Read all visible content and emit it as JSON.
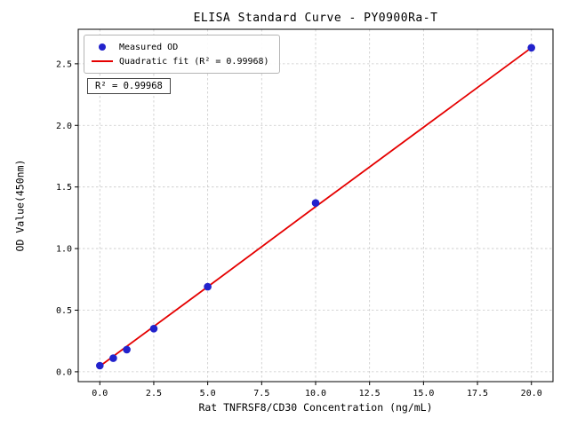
{
  "figure": {
    "background": "#ffffff"
  },
  "chart_data": {
    "type": "scatter",
    "title": "ELISA Standard Curve - PY0900Ra-T",
    "xlabel": "Rat TNFRSF8/CD30 Concentration (ng/mL)",
    "ylabel": "OD Value(450nm)",
    "xlim": [
      -1.0,
      21.0
    ],
    "ylim": [
      -0.08,
      2.78
    ],
    "x_ticks": [
      0.0,
      2.5,
      5.0,
      7.5,
      10.0,
      12.5,
      15.0,
      17.5,
      20.0
    ],
    "x_tick_labels": [
      "0.0",
      "2.5",
      "5.0",
      "7.5",
      "10.0",
      "12.5",
      "15.0",
      "17.5",
      "20.0"
    ],
    "y_ticks": [
      0.0,
      0.5,
      1.0,
      1.5,
      2.0,
      2.5
    ],
    "y_tick_labels": [
      "0.0",
      "0.5",
      "1.0",
      "1.5",
      "2.0",
      "2.5"
    ],
    "grid": true,
    "grid_style": "dashed",
    "legend_position": "upper left",
    "series": [
      {
        "name": "Measured OD",
        "type": "scatter",
        "color": "#2222cc",
        "x": [
          0,
          0.625,
          1.25,
          2.5,
          5,
          10,
          20
        ],
        "y": [
          0.05,
          0.11,
          0.18,
          0.35,
          0.69,
          1.37,
          2.63
        ]
      },
      {
        "name": "Quadratic fit (R² = 0.99968)",
        "type": "line",
        "color": "#e50000",
        "x": [
          0,
          5,
          10,
          15,
          20
        ],
        "y": [
          0.045,
          0.69,
          1.34,
          1.985,
          2.63
        ]
      }
    ],
    "annotation": "R² = 0.99968",
    "r_squared": "0.99968"
  }
}
